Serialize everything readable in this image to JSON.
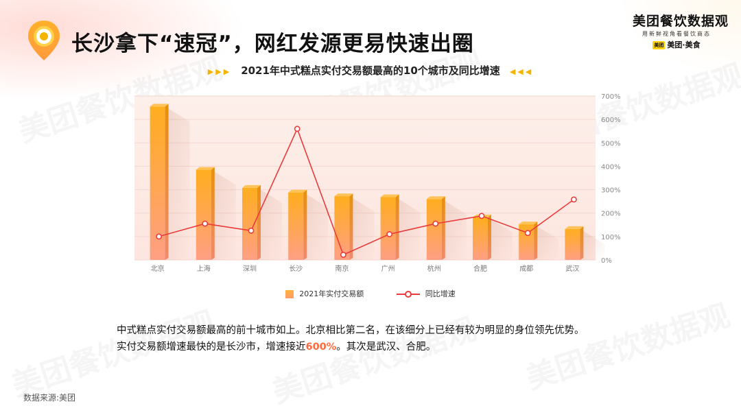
{
  "header": {
    "title": "长沙拿下“速冠”，网红发源更易快速出圈",
    "logo_main": "美团餐饮数据观",
    "logo_slogan": "用新鲜视角看餐饮商态",
    "logo_badge": "美团",
    "logo_sub": "美团·美食"
  },
  "colors": {
    "bar_top": "#ffb020",
    "bar_bottom": "#ff9e80",
    "line": "#ea3b3b",
    "plot_bg": "#fdeeea",
    "highlight": "#ff6a3d",
    "arrows": "#f5b400"
  },
  "chart_data": {
    "type": "bar",
    "title": "2021年中式糕点实付交易额最高的10个城市及同比增速",
    "title_arrows_left": "▶▶▶",
    "title_arrows_right": "◀◀◀",
    "categories": [
      "北京",
      "上海",
      "深圳",
      "长沙",
      "南京",
      "广州",
      "杭州",
      "合肥",
      "成都",
      "武汉"
    ],
    "series": [
      {
        "name": "2021年实付交易额",
        "type": "bar",
        "values": [
          655,
          385,
          308,
          288,
          272,
          268,
          260,
          182,
          152,
          132
        ]
      },
      {
        "name": "同比增速",
        "type": "line",
        "axis": "right",
        "unit": "%",
        "values": [
          100,
          155,
          125,
          560,
          22,
          110,
          155,
          188,
          115,
          258
        ]
      }
    ],
    "y_right": {
      "min": 0,
      "max": 700,
      "ticks": [
        "0%",
        "100%",
        "200%",
        "300%",
        "400%",
        "500%",
        "600%",
        "700%"
      ]
    },
    "grid": true,
    "legend_position": "bottom"
  },
  "summary": {
    "line1": "中式糕点实付交易额最高的前十城市如上。北京相比第二名，在该细分上已经有较为明显的身位领先优势。",
    "line2_before": "实付交易额增速最快的是长沙市，增速接近",
    "line2_highlight": "600%",
    "line2_after": "。其次是武汉、合肥。"
  },
  "footer": {
    "source": "数据来源:美团"
  },
  "watermark_text": "美团餐饮数据观"
}
